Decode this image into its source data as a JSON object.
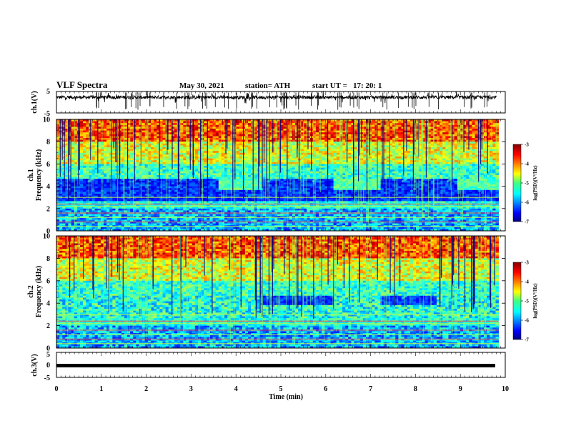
{
  "header": {
    "title": "VLF Spectra",
    "date": "May 30, 2021",
    "station": "station= ATH",
    "start_label": "start UT =",
    "start_time": "17: 20: 1"
  },
  "chart_data": [
    {
      "type": "line",
      "panel": "ch1-waveform",
      "ylabel": "ch.1(V)",
      "ylim": [
        -5,
        5
      ],
      "yticks": [
        "5",
        "-5"
      ],
      "xlim": [
        0,
        10
      ],
      "description_of_values": "noisy waveform near 0 V with spikes"
    },
    {
      "type": "heatmap",
      "panel": "ch1-spectrogram",
      "ylabel_line1": "ch.1",
      "ylabel_line2": "Frequency (kHz)",
      "ylim": [
        0,
        10
      ],
      "yticks": [
        "0",
        "2",
        "4",
        "6",
        "8",
        "10"
      ],
      "xlim": [
        0,
        10
      ],
      "data_end_min": 9.85,
      "colorbar": {
        "label": "log(PSD)(V²/Hz)",
        "range": [
          -7,
          -3
        ],
        "ticks": [
          "-3",
          "-4",
          "-5",
          "-6",
          "-7"
        ]
      }
    },
    {
      "type": "heatmap",
      "panel": "ch2-spectrogram",
      "ylabel_line1": "ch.2",
      "ylabel_line2": "Frequency (kHz)",
      "ylim": [
        0,
        10
      ],
      "yticks": [
        "0",
        "2",
        "4",
        "6",
        "8",
        "10"
      ],
      "xlim": [
        0,
        10
      ],
      "data_end_min": 9.85,
      "colorbar": {
        "label": "log(PSD)(V²/Hz)",
        "range": [
          -7,
          -3
        ],
        "ticks": [
          "-3",
          "-4",
          "-5",
          "-6",
          "-7"
        ]
      }
    },
    {
      "type": "line",
      "panel": "ch3-waveform",
      "ylabel": "ch.3(V)",
      "ylim": [
        -5,
        5
      ],
      "yticks": [
        "5",
        "0",
        "-5"
      ],
      "xlim": [
        0,
        10
      ],
      "xlabel": "Time (min)",
      "xticks": [
        "0",
        "1",
        "2",
        "3",
        "4",
        "5",
        "6",
        "7",
        "8",
        "9",
        "10"
      ]
    }
  ]
}
